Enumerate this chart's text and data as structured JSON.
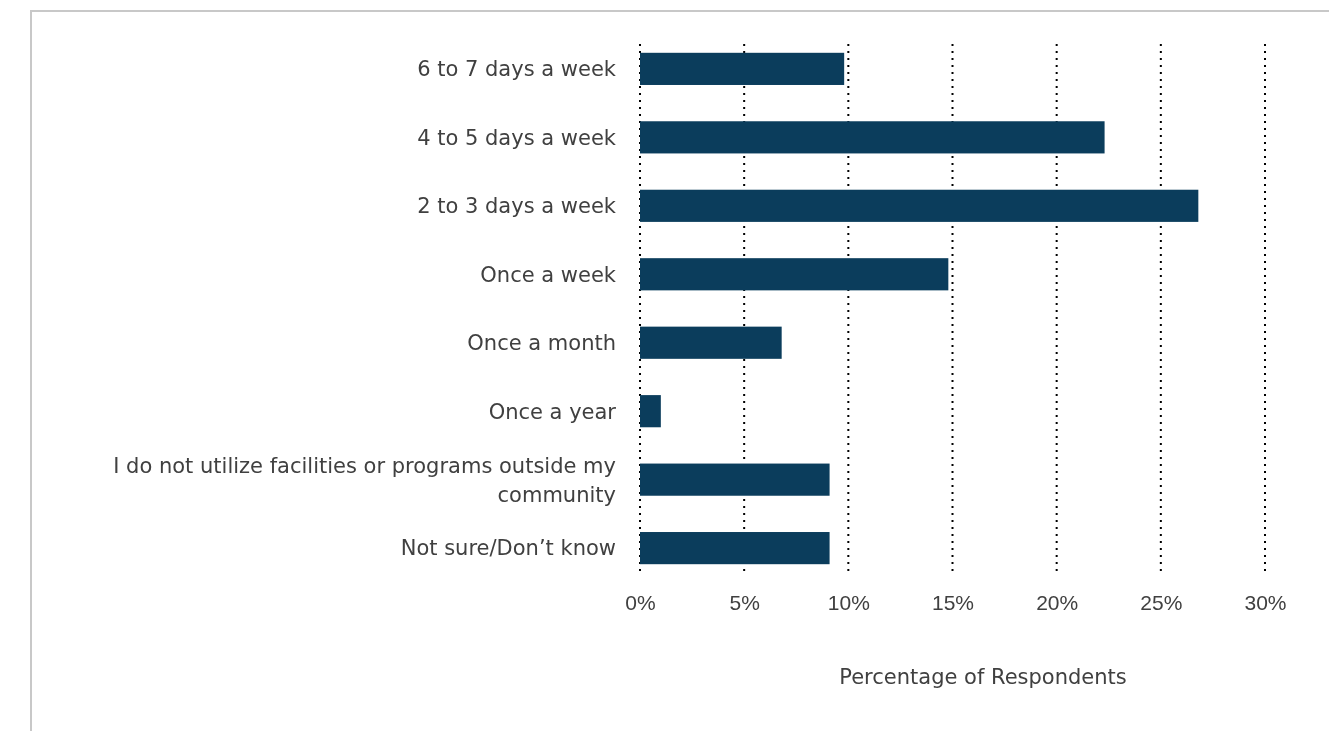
{
  "chart_data": {
    "type": "bar",
    "orientation": "horizontal",
    "xlabel": "Percentage of Respondents",
    "categories": [
      "6 to 7 days a week",
      "4 to 5 days a week",
      "2 to 3 days a week",
      "Once a week",
      "Once a month",
      "Once a year",
      "I do not utilize facilities or programs outside my community",
      "Not sure/Don’t know"
    ],
    "values": [
      9.8,
      22.3,
      26.8,
      14.8,
      6.8,
      1.0,
      9.1,
      9.1
    ],
    "color": "#0b3d5c",
    "xlim": [
      0,
      30
    ],
    "xticks": [
      {
        "value": 0,
        "label": "0%"
      },
      {
        "value": 5,
        "label": "5%"
      },
      {
        "value": 10,
        "label": "10%"
      },
      {
        "value": 15,
        "label": "15%"
      },
      {
        "value": 20,
        "label": "20%"
      },
      {
        "value": 25,
        "label": "25%"
      },
      {
        "value": 30,
        "label": "30%"
      }
    ],
    "grid": "x"
  }
}
